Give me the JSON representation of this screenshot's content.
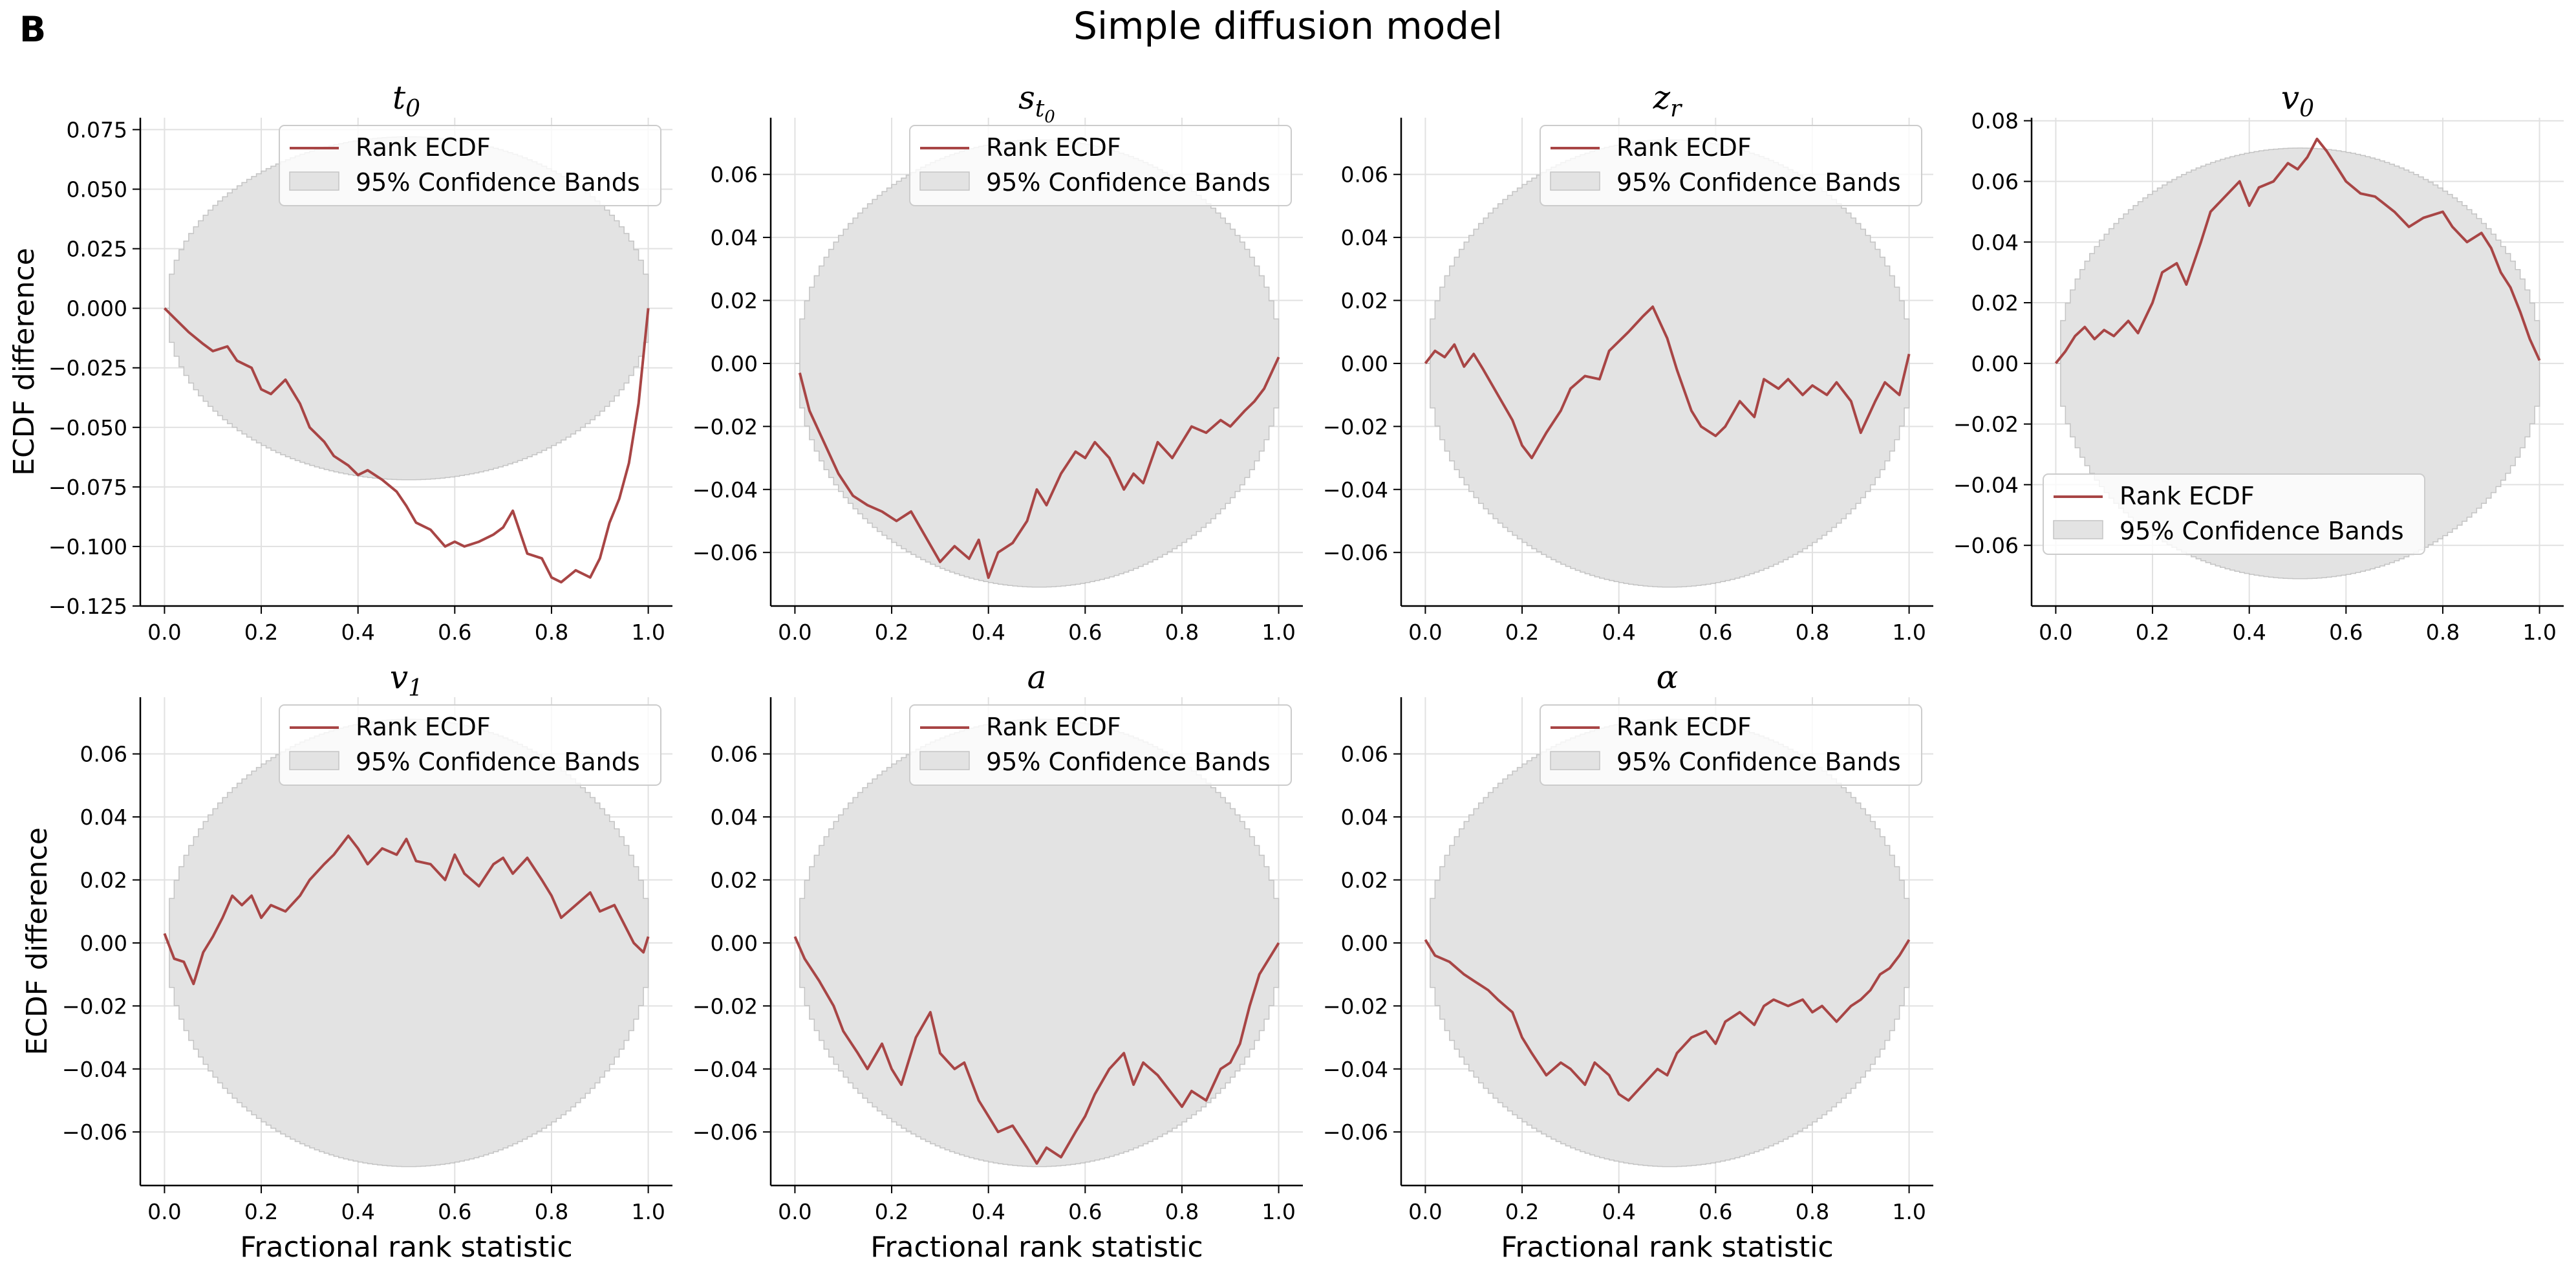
{
  "figure": {
    "panel_letter": "B",
    "title": "Simple diffusion model",
    "colors": {
      "line": "#a84545",
      "band": "#e3e3e3",
      "band_edge": "#c4c4c4",
      "grid": "#e1e1e1"
    }
  },
  "chart_data": [
    {
      "type": "line",
      "title": "t_0",
      "xlabel": "",
      "ylabel": "ECDF difference",
      "xlim": [
        -0.05,
        1.05
      ],
      "ylim": [
        -0.125,
        0.08
      ],
      "xticks": [
        "0.0",
        "0.2",
        "0.4",
        "0.6",
        "0.8",
        "1.0"
      ],
      "yticks": [
        "0.075",
        "0.050",
        "0.025",
        "0.000",
        "−0.025",
        "−0.050",
        "−0.075",
        "−0.100",
        "−0.125"
      ],
      "band_halfwidth": 0.072,
      "band_center": 0.0,
      "legend": {
        "position": "top-right",
        "entries": [
          "Rank ECDF",
          "95% Confidence Bands"
        ]
      },
      "series": [
        {
          "name": "Rank ECDF",
          "x": [
            0.0,
            0.02,
            0.05,
            0.08,
            0.1,
            0.13,
            0.15,
            0.18,
            0.2,
            0.22,
            0.25,
            0.28,
            0.3,
            0.33,
            0.35,
            0.38,
            0.4,
            0.42,
            0.45,
            0.48,
            0.5,
            0.52,
            0.55,
            0.58,
            0.6,
            0.62,
            0.65,
            0.68,
            0.7,
            0.72,
            0.75,
            0.78,
            0.8,
            0.82,
            0.85,
            0.88,
            0.9,
            0.92,
            0.94,
            0.96,
            0.98,
            1.0
          ],
          "y": [
            0.0,
            -0.004,
            -0.01,
            -0.015,
            -0.018,
            -0.016,
            -0.022,
            -0.025,
            -0.034,
            -0.036,
            -0.03,
            -0.04,
            -0.05,
            -0.056,
            -0.062,
            -0.066,
            -0.07,
            -0.068,
            -0.072,
            -0.077,
            -0.083,
            -0.09,
            -0.093,
            -0.1,
            -0.098,
            -0.1,
            -0.098,
            -0.095,
            -0.092,
            -0.085,
            -0.103,
            -0.105,
            -0.113,
            -0.115,
            -0.11,
            -0.113,
            -0.105,
            -0.09,
            -0.08,
            -0.065,
            -0.04,
            0.0
          ]
        }
      ]
    },
    {
      "type": "line",
      "title": "s_t0",
      "xlabel": "",
      "ylabel": "",
      "xlim": [
        -0.05,
        1.05
      ],
      "ylim": [
        -0.077,
        0.078
      ],
      "xticks": [
        "0.0",
        "0.2",
        "0.4",
        "0.6",
        "0.8",
        "1.0"
      ],
      "yticks": [
        "0.06",
        "0.04",
        "0.02",
        "0.00",
        "−0.02",
        "−0.04",
        "−0.06"
      ],
      "band_halfwidth": 0.071,
      "band_center": 0.0,
      "legend": {
        "position": "top-right",
        "entries": [
          "Rank ECDF",
          "95% Confidence Bands"
        ]
      },
      "series": [
        {
          "name": "Rank ECDF",
          "x": [
            0.01,
            0.03,
            0.06,
            0.09,
            0.12,
            0.15,
            0.18,
            0.21,
            0.24,
            0.27,
            0.3,
            0.33,
            0.36,
            0.38,
            0.4,
            0.42,
            0.45,
            0.48,
            0.5,
            0.52,
            0.55,
            0.58,
            0.6,
            0.62,
            0.65,
            0.68,
            0.7,
            0.72,
            0.75,
            0.78,
            0.8,
            0.82,
            0.85,
            0.88,
            0.9,
            0.93,
            0.95,
            0.97,
            1.0
          ],
          "y": [
            -0.003,
            -0.015,
            -0.025,
            -0.035,
            -0.042,
            -0.045,
            -0.047,
            -0.05,
            -0.047,
            -0.055,
            -0.063,
            -0.058,
            -0.062,
            -0.056,
            -0.068,
            -0.06,
            -0.057,
            -0.05,
            -0.04,
            -0.045,
            -0.035,
            -0.028,
            -0.03,
            -0.025,
            -0.03,
            -0.04,
            -0.035,
            -0.038,
            -0.025,
            -0.03,
            -0.025,
            -0.02,
            -0.022,
            -0.018,
            -0.02,
            -0.015,
            -0.012,
            -0.008,
            0.002
          ]
        }
      ]
    },
    {
      "type": "line",
      "title": "z_r",
      "xlabel": "",
      "ylabel": "",
      "xlim": [
        -0.05,
        1.05
      ],
      "ylim": [
        -0.077,
        0.078
      ],
      "xticks": [
        "0.0",
        "0.2",
        "0.4",
        "0.6",
        "0.8",
        "1.0"
      ],
      "yticks": [
        "0.06",
        "0.04",
        "0.02",
        "0.00",
        "−0.02",
        "−0.04",
        "−0.06"
      ],
      "band_halfwidth": 0.071,
      "band_center": 0.0,
      "legend": {
        "position": "top-right",
        "entries": [
          "Rank ECDF",
          "95% Confidence Bands"
        ]
      },
      "series": [
        {
          "name": "Rank ECDF",
          "x": [
            0.0,
            0.02,
            0.04,
            0.06,
            0.08,
            0.1,
            0.12,
            0.15,
            0.18,
            0.2,
            0.22,
            0.25,
            0.28,
            0.3,
            0.33,
            0.36,
            0.38,
            0.4,
            0.42,
            0.45,
            0.47,
            0.5,
            0.52,
            0.55,
            0.57,
            0.6,
            0.62,
            0.65,
            0.68,
            0.7,
            0.73,
            0.75,
            0.78,
            0.8,
            0.83,
            0.85,
            0.88,
            0.9,
            0.93,
            0.95,
            0.98,
            1.0
          ],
          "y": [
            0.0,
            0.004,
            0.002,
            0.006,
            -0.001,
            0.003,
            -0.002,
            -0.01,
            -0.018,
            -0.026,
            -0.03,
            -0.022,
            -0.015,
            -0.008,
            -0.004,
            -0.005,
            0.004,
            0.007,
            0.01,
            0.015,
            0.018,
            0.008,
            -0.002,
            -0.015,
            -0.02,
            -0.023,
            -0.02,
            -0.012,
            -0.017,
            -0.005,
            -0.008,
            -0.005,
            -0.01,
            -0.007,
            -0.01,
            -0.006,
            -0.012,
            -0.022,
            -0.012,
            -0.006,
            -0.01,
            0.003
          ]
        }
      ]
    },
    {
      "type": "line",
      "title": "v_0",
      "xlabel": "",
      "ylabel": "",
      "xlim": [
        -0.05,
        1.05
      ],
      "ylim": [
        -0.08,
        0.081
      ],
      "xticks": [
        "0.0",
        "0.2",
        "0.4",
        "0.6",
        "0.8",
        "1.0"
      ],
      "yticks": [
        "0.08",
        "0.06",
        "0.04",
        "0.02",
        "0.00",
        "−0.02",
        "−0.04",
        "−0.06"
      ],
      "band_halfwidth": 0.071,
      "band_center": 0.0,
      "legend": {
        "position": "bottom-left",
        "entries": [
          "Rank ECDF",
          "95% Confidence Bands"
        ]
      },
      "series": [
        {
          "name": "Rank ECDF",
          "x": [
            0.0,
            0.02,
            0.04,
            0.06,
            0.08,
            0.1,
            0.12,
            0.15,
            0.17,
            0.2,
            0.22,
            0.25,
            0.27,
            0.3,
            0.32,
            0.35,
            0.38,
            0.4,
            0.42,
            0.45,
            0.48,
            0.5,
            0.52,
            0.54,
            0.56,
            0.58,
            0.6,
            0.63,
            0.66,
            0.7,
            0.73,
            0.76,
            0.8,
            0.82,
            0.85,
            0.88,
            0.9,
            0.92,
            0.94,
            0.96,
            0.98,
            1.0
          ],
          "y": [
            0.0,
            0.004,
            0.009,
            0.012,
            0.008,
            0.011,
            0.009,
            0.014,
            0.01,
            0.02,
            0.03,
            0.033,
            0.026,
            0.04,
            0.05,
            0.055,
            0.06,
            0.052,
            0.058,
            0.06,
            0.066,
            0.064,
            0.068,
            0.074,
            0.07,
            0.065,
            0.06,
            0.056,
            0.055,
            0.05,
            0.045,
            0.048,
            0.05,
            0.045,
            0.04,
            0.043,
            0.038,
            0.03,
            0.025,
            0.017,
            0.008,
            0.001
          ]
        }
      ]
    },
    {
      "type": "line",
      "title": "v_1",
      "xlabel": "Fractional rank statistic",
      "ylabel": "ECDF difference",
      "xlim": [
        -0.05,
        1.05
      ],
      "ylim": [
        -0.077,
        0.078
      ],
      "xticks": [
        "0.0",
        "0.2",
        "0.4",
        "0.6",
        "0.8",
        "1.0"
      ],
      "yticks": [
        "0.06",
        "0.04",
        "0.02",
        "0.00",
        "−0.02",
        "−0.04",
        "−0.06"
      ],
      "band_halfwidth": 0.071,
      "band_center": 0.0,
      "legend": {
        "position": "top-right",
        "entries": [
          "Rank ECDF",
          "95% Confidence Bands"
        ]
      },
      "series": [
        {
          "name": "Rank ECDF",
          "x": [
            0.0,
            0.02,
            0.04,
            0.06,
            0.08,
            0.1,
            0.12,
            0.14,
            0.16,
            0.18,
            0.2,
            0.22,
            0.25,
            0.28,
            0.3,
            0.33,
            0.35,
            0.38,
            0.4,
            0.42,
            0.45,
            0.48,
            0.5,
            0.52,
            0.55,
            0.58,
            0.6,
            0.62,
            0.65,
            0.68,
            0.7,
            0.72,
            0.75,
            0.78,
            0.8,
            0.82,
            0.85,
            0.88,
            0.9,
            0.93,
            0.95,
            0.97,
            0.99,
            1.0
          ],
          "y": [
            0.003,
            -0.005,
            -0.006,
            -0.013,
            -0.003,
            0.002,
            0.008,
            0.015,
            0.012,
            0.015,
            0.008,
            0.012,
            0.01,
            0.015,
            0.02,
            0.025,
            0.028,
            0.034,
            0.03,
            0.025,
            0.03,
            0.028,
            0.033,
            0.026,
            0.025,
            0.02,
            0.028,
            0.022,
            0.018,
            0.025,
            0.027,
            0.022,
            0.027,
            0.02,
            0.015,
            0.008,
            0.012,
            0.016,
            0.01,
            0.012,
            0.006,
            0.0,
            -0.003,
            0.002
          ]
        }
      ]
    },
    {
      "type": "line",
      "title": "a",
      "xlabel": "Fractional rank statistic",
      "ylabel": "",
      "xlim": [
        -0.05,
        1.05
      ],
      "ylim": [
        -0.077,
        0.078
      ],
      "xticks": [
        "0.0",
        "0.2",
        "0.4",
        "0.6",
        "0.8",
        "1.0"
      ],
      "yticks": [
        "0.06",
        "0.04",
        "0.02",
        "0.00",
        "−0.02",
        "−0.04",
        "−0.06"
      ],
      "band_halfwidth": 0.071,
      "band_center": 0.0,
      "legend": {
        "position": "top-right",
        "entries": [
          "Rank ECDF",
          "95% Confidence Bands"
        ]
      },
      "series": [
        {
          "name": "Rank ECDF",
          "x": [
            0.0,
            0.02,
            0.05,
            0.08,
            0.1,
            0.13,
            0.15,
            0.18,
            0.2,
            0.22,
            0.25,
            0.28,
            0.3,
            0.33,
            0.35,
            0.38,
            0.4,
            0.42,
            0.45,
            0.48,
            0.5,
            0.52,
            0.55,
            0.58,
            0.6,
            0.62,
            0.65,
            0.68,
            0.7,
            0.72,
            0.75,
            0.78,
            0.8,
            0.82,
            0.85,
            0.88,
            0.9,
            0.92,
            0.94,
            0.96,
            0.98,
            1.0
          ],
          "y": [
            0.002,
            -0.005,
            -0.012,
            -0.02,
            -0.028,
            -0.035,
            -0.04,
            -0.032,
            -0.04,
            -0.045,
            -0.03,
            -0.022,
            -0.035,
            -0.04,
            -0.038,
            -0.05,
            -0.055,
            -0.06,
            -0.058,
            -0.065,
            -0.07,
            -0.065,
            -0.068,
            -0.06,
            -0.055,
            -0.048,
            -0.04,
            -0.035,
            -0.045,
            -0.038,
            -0.042,
            -0.048,
            -0.052,
            -0.047,
            -0.05,
            -0.04,
            -0.038,
            -0.032,
            -0.02,
            -0.01,
            -0.005,
            0.0
          ]
        }
      ]
    },
    {
      "type": "line",
      "title": "α",
      "xlabel": "Fractional rank statistic",
      "ylabel": "",
      "xlim": [
        -0.05,
        1.05
      ],
      "ylim": [
        -0.077,
        0.078
      ],
      "xticks": [
        "0.0",
        "0.2",
        "0.4",
        "0.6",
        "0.8",
        "1.0"
      ],
      "yticks": [
        "0.06",
        "0.04",
        "0.02",
        "0.00",
        "−0.02",
        "−0.04",
        "−0.06"
      ],
      "band_halfwidth": 0.071,
      "band_center": 0.0,
      "legend": {
        "position": "top-right",
        "entries": [
          "Rank ECDF",
          "95% Confidence Bands"
        ]
      },
      "series": [
        {
          "name": "Rank ECDF",
          "x": [
            0.0,
            0.02,
            0.05,
            0.08,
            0.1,
            0.13,
            0.15,
            0.18,
            0.2,
            0.22,
            0.25,
            0.28,
            0.3,
            0.33,
            0.35,
            0.38,
            0.4,
            0.42,
            0.45,
            0.48,
            0.5,
            0.52,
            0.55,
            0.58,
            0.6,
            0.62,
            0.65,
            0.68,
            0.7,
            0.72,
            0.75,
            0.78,
            0.8,
            0.82,
            0.85,
            0.88,
            0.9,
            0.92,
            0.94,
            0.96,
            0.98,
            1.0
          ],
          "y": [
            0.001,
            -0.004,
            -0.006,
            -0.01,
            -0.012,
            -0.015,
            -0.018,
            -0.022,
            -0.03,
            -0.035,
            -0.042,
            -0.038,
            -0.04,
            -0.045,
            -0.038,
            -0.042,
            -0.048,
            -0.05,
            -0.045,
            -0.04,
            -0.042,
            -0.035,
            -0.03,
            -0.028,
            -0.032,
            -0.025,
            -0.022,
            -0.026,
            -0.02,
            -0.018,
            -0.02,
            -0.018,
            -0.022,
            -0.02,
            -0.025,
            -0.02,
            -0.018,
            -0.015,
            -0.01,
            -0.008,
            -0.004,
            0.001
          ]
        }
      ]
    }
  ]
}
